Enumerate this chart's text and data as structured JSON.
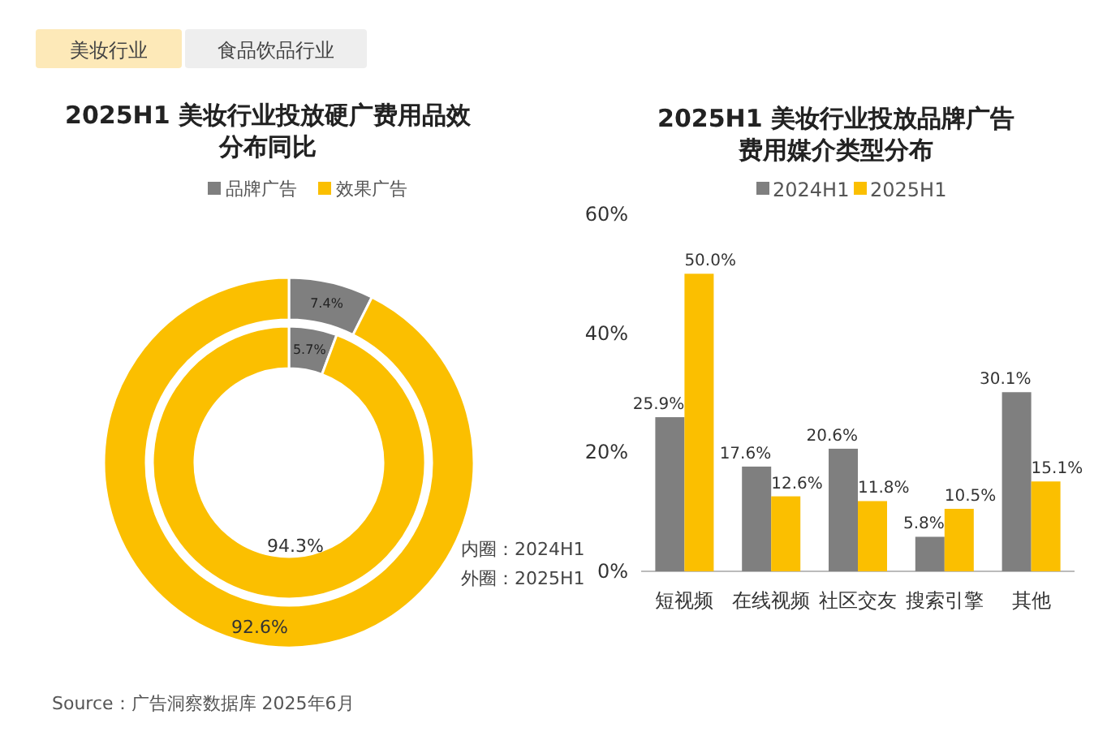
{
  "chart_data": [
    {
      "type": "donut",
      "title": "2025H1 美妆行业投放硬广费用品效分布同比",
      "categories": [
        "品牌广告",
        "效果广告"
      ],
      "colors": [
        "#7f7f7f",
        "#fbbf00"
      ],
      "series": [
        {
          "name": "内圈：2024H1",
          "values": [
            5.7,
            94.3
          ],
          "value_labels": [
            "5.7%",
            "94.3%"
          ]
        },
        {
          "name": "外圈：2025H1",
          "values": [
            7.4,
            92.6
          ],
          "value_labels": [
            "7.4%",
            "92.6%"
          ]
        }
      ],
      "legend": "top",
      "annotations": [
        "美妆行业",
        "食品饮品行业",
        "Source：广告洞察数据库 2025年6月"
      ]
    },
    {
      "type": "bar",
      "title": "2025H1 美妆行业投放品牌广告费用媒介类型分布",
      "categories": [
        "短视频",
        "在线视频",
        "社区交友",
        "搜索引擎",
        "其他"
      ],
      "series": [
        {
          "name": "2024H1",
          "color": "#7f7f7f",
          "values": [
            25.9,
            17.6,
            20.6,
            5.8,
            30.1
          ],
          "value_labels": [
            "25.9%",
            "17.6%",
            "20.6%",
            "5.8%",
            "30.1%"
          ]
        },
        {
          "name": "2025H1",
          "color": "#fbbf00",
          "values": [
            50.0,
            12.6,
            11.8,
            10.5,
            15.1
          ],
          "value_labels": [
            "50.0%",
            "12.6%",
            "11.8%",
            "10.5%",
            "15.1%"
          ]
        }
      ],
      "ylim": [
        0,
        60
      ],
      "yticks": [
        {
          "value": 0,
          "label": "0%"
        },
        {
          "value": 20,
          "label": "20%"
        },
        {
          "value": 40,
          "label": "40%"
        },
        {
          "value": 60,
          "label": "60%"
        }
      ],
      "grid": false,
      "legend": "top"
    }
  ]
}
